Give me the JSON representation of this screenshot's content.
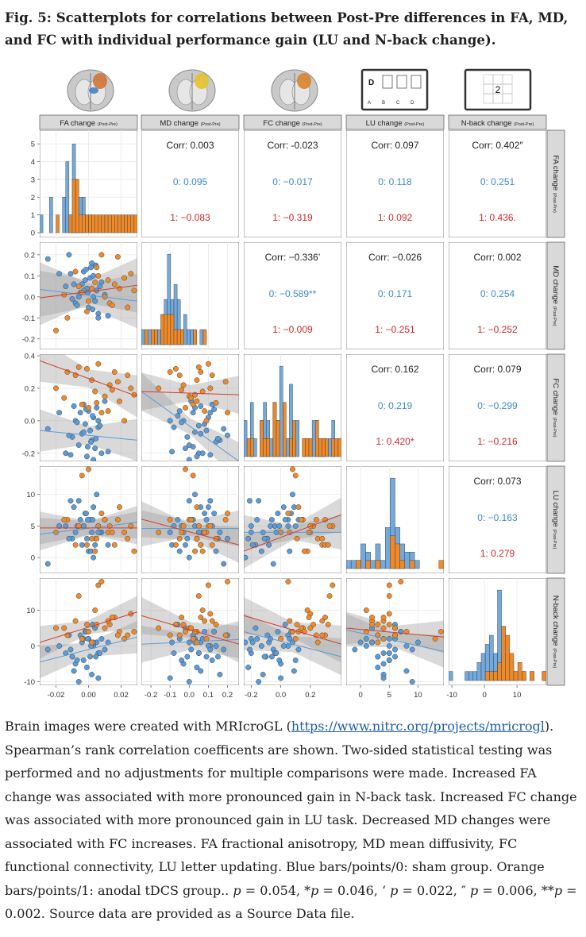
{
  "figure": {
    "title": "Fig. 5: Scatterplots for correlations between Post-Pre differences in FA, MD, and FC with individual performance gain (LU and N-back change)."
  },
  "caption": {
    "text_before_link": "Brain images were created with MRIcroGL (",
    "link_text": "https://www.nitrc.org/projects/mricrogl",
    "text_after_link": "). Spearman’s rank correlation coefficents are shown. Two-sided statistical testing was performed and no adjustments for multiple comparisons were made. Increased FA change was associated with more pronounced gain in N-back task. Increased FC change was associated with more pronounced gain in LU task. Decreased MD changes were associated with FC increases. FA fractional anisotropy, MD mean diffusivity, FC functional connectivity, LU letter updating. Blue bars/points/0: sham group. Orange bars/points/1: anodal tDCS group..",
    "p1_sym": "p",
    "p1_val": " = 0.054, *",
    "p2_sym": "p",
    "p2_val": " = 0.046, ‘ ",
    "p3_sym": "p",
    "p3_val": " = 0.022, ″ ",
    "p4_sym": "p",
    "p4_val": " = 0.006, **",
    "p5_sym": "p",
    "p5_val": " = 0.002. Source data are provided as a Source Data file."
  },
  "icons": {
    "lu_task": {
      "letter": "D",
      "bottom_letters": [
        "A",
        "B",
        "C",
        "D"
      ]
    },
    "nback_task": {
      "digit": "2"
    }
  },
  "colors": {
    "sham": "#5b9bd8",
    "anodal": "#ee8a2a",
    "corr_sham_text": "#3e89cc",
    "corr_anodal_text": "#cc2a2a",
    "strip": "#d9d9d9"
  },
  "chart_data": {
    "type": "scatter",
    "variables": [
      {
        "key": "FA",
        "label": "FA change",
        "sub": "(Post-Pre)",
        "lim": [
          -0.03,
          0.03
        ],
        "ticks": [
          -0.02,
          0.0,
          0.02
        ],
        "tick_labels": [
          "-0.02",
          "0.00",
          "0.02"
        ]
      },
      {
        "key": "MD",
        "label": "MD change",
        "sub": "(Post-Pre)",
        "lim": [
          -0.25,
          0.26
        ],
        "ticks": [
          -0.2,
          -0.1,
          0.0,
          0.1,
          0.2
        ],
        "tick_labels": [
          "-0.2",
          "-0.1",
          "0.0",
          "0.1",
          "0.2"
        ]
      },
      {
        "key": "FC",
        "label": "FC change",
        "sub": "(Post-Pre)",
        "lim": [
          -0.25,
          0.41
        ],
        "ticks": [
          -0.2,
          0.0,
          0.2
        ],
        "tick_labels": [
          "-0.2",
          "0.0",
          "0.2"
        ]
      },
      {
        "key": "LU",
        "label": "LU change",
        "sub": "(Post-Pre)",
        "lim": [
          -2.5,
          14.5
        ],
        "ticks": [
          0,
          5,
          10
        ],
        "tick_labels": [
          "0",
          "5",
          "10"
        ]
      },
      {
        "key": "NB",
        "label": "N-back change",
        "sub": "(Post-Pre)",
        "lim": [
          -11,
          19
        ],
        "ticks": [
          -10,
          0,
          10
        ],
        "tick_labels": [
          "-10",
          "0",
          "10"
        ]
      }
    ],
    "fa_count_axis": {
      "lim": [
        -0.3,
        5.5
      ],
      "ticks": [
        0,
        1,
        2,
        3,
        4,
        5
      ],
      "tick_labels": [
        "0",
        "1",
        "2",
        "3",
        "4",
        "5"
      ]
    },
    "left_axis_labels": {
      "MD": {
        "ticks": [
          -0.2,
          -0.1,
          0.0,
          0.1,
          0.2
        ],
        "tick_labels": [
          "-0.2",
          "-0.1",
          "0.0",
          "0.1",
          "0.2"
        ]
      },
      "FC": {
        "ticks": [
          -0.2,
          0.0,
          0.2,
          0.4
        ],
        "tick_labels": [
          "-0.2",
          "0.0",
          "0.2",
          "0.4"
        ]
      },
      "LU": {
        "ticks": [
          0,
          5,
          10
        ],
        "tick_labels": [
          "0",
          "5",
          "10"
        ]
      },
      "NB": {
        "ticks": [
          -10,
          0,
          10
        ],
        "tick_labels": [
          "-10",
          "0",
          "10"
        ]
      }
    },
    "correlations": [
      {
        "row": "FA",
        "col": "MD",
        "corr": "Corr: 0.003",
        "g0": "0: 0.095",
        "g1": "1: −0.083"
      },
      {
        "row": "FA",
        "col": "FC",
        "corr": "Corr: -0.023",
        "g0": "0: −0.017",
        "g1": "1: −0.319"
      },
      {
        "row": "FA",
        "col": "LU",
        "corr": "Corr: 0.097",
        "g0": "0: 0.118",
        "g1": "1: 0.092"
      },
      {
        "row": "FA",
        "col": "NB",
        "corr": "Corr: 0.402″",
        "g0": "0: 0.251",
        "g1": "1: 0.436."
      },
      {
        "row": "MD",
        "col": "FC",
        "corr": "Corr: −0.336’",
        "g0": "0: −0.589**",
        "g1": "1: −0.009"
      },
      {
        "row": "MD",
        "col": "LU",
        "corr": "Corr: −0.026",
        "g0": "0: 0.171",
        "g1": "1: −0.251"
      },
      {
        "row": "MD",
        "col": "NB",
        "corr": "Corr: 0.002",
        "g0": "0: 0.254",
        "g1": "1: −0.252"
      },
      {
        "row": "FC",
        "col": "LU",
        "corr": "Corr: 0.162",
        "g0": "0: 0.219",
        "g1": "1: 0.420*"
      },
      {
        "row": "FC",
        "col": "NB",
        "corr": "Corr: 0.079",
        "g0": "0: −0.299",
        "g1": "1: −0.216"
      },
      {
        "row": "LU",
        "col": "NB",
        "corr": "Corr: 0.073",
        "g0": "0: −0.163",
        "g1": "1: 0.279"
      }
    ],
    "histograms": {
      "FA": {
        "bin_start": -0.03,
        "bin_width": 0.002,
        "sham": [
          1,
          0,
          0,
          2,
          0,
          0,
          0,
          2,
          4,
          1,
          5,
          3,
          2,
          2,
          0,
          1,
          0,
          0,
          0,
          0,
          0,
          0,
          0,
          0,
          0,
          0,
          0,
          0,
          0,
          0
        ],
        "anodal": [
          0,
          0,
          0,
          0,
          0,
          1,
          0,
          0,
          0,
          1,
          3,
          3,
          1,
          1,
          1,
          1,
          1,
          1,
          1,
          1,
          1,
          1,
          1,
          1,
          1,
          1,
          1,
          1,
          1,
          1
        ]
      },
      "MD": {
        "bin_start": -0.25,
        "bin_width": 0.017,
        "sham": [
          1,
          0,
          1,
          0,
          0,
          1,
          2,
          3,
          6,
          3,
          4,
          3,
          1,
          2,
          1,
          1,
          0,
          0,
          1,
          0
        ],
        "anodal": [
          0,
          1,
          0,
          1,
          1,
          0,
          2,
          2,
          2,
          2,
          1,
          1,
          1,
          0,
          0,
          0,
          1,
          0,
          0,
          1
        ]
      },
      "FC": {
        "bin_start": -0.25,
        "bin_width": 0.022,
        "sham": [
          2,
          0,
          3,
          1,
          0,
          2,
          3,
          2,
          1,
          3,
          2,
          5,
          1,
          1,
          4,
          1,
          2,
          0,
          1,
          0,
          0,
          2,
          2,
          1,
          1,
          0,
          1,
          2,
          0,
          0
        ],
        "anodal": [
          0,
          1,
          1,
          0,
          0,
          2,
          1,
          1,
          0,
          3,
          2,
          0,
          3,
          0,
          1,
          2,
          0,
          0,
          1,
          1,
          1,
          0,
          2,
          1,
          1,
          1,
          0,
          1,
          1,
          1
        ]
      },
      "LU": {
        "bin_start": -2.5,
        "bin_width": 0.85,
        "sham": [
          1,
          1,
          1,
          3,
          2,
          1,
          3,
          1,
          5,
          11,
          5,
          3,
          2,
          2,
          1,
          0,
          0,
          0,
          0,
          0
        ],
        "anodal": [
          0,
          0,
          1,
          0,
          1,
          0,
          1,
          0,
          0,
          4,
          3,
          1,
          0,
          1,
          0,
          0,
          0,
          0,
          0,
          1
        ]
      },
      "NB": {
        "bin_start": -11,
        "bin_width": 1.25,
        "sham": [
          1,
          0,
          0,
          0,
          1,
          1,
          1,
          2,
          3,
          4,
          5,
          3,
          10,
          3,
          1,
          2,
          1,
          0,
          1,
          0,
          1,
          0,
          0,
          1
        ],
        "anodal": [
          0,
          0,
          0,
          0,
          0,
          0,
          0,
          0,
          0,
          1,
          1,
          1,
          2,
          6,
          5,
          3,
          1,
          2,
          1,
          0,
          1,
          0,
          0,
          1
        ]
      }
    },
    "points": {
      "FA": {
        "sham": [
          -0.025,
          -0.018,
          -0.014,
          -0.01,
          -0.008,
          -0.006,
          -0.005,
          -0.004,
          -0.003,
          -0.002,
          -0.001,
          0.0,
          0.001,
          0.002,
          0.003,
          0.004,
          0.005,
          0.006,
          0.008,
          0.01,
          -0.012,
          -0.007,
          -0.0015,
          0.0015,
          0.007,
          0.012,
          -0.009,
          -0.003,
          0.0025,
          0.0045,
          0.003,
          -0.011,
          0.006,
          -0.0005
        ],
        "anodal": [
          -0.02,
          -0.013,
          -0.008,
          -0.004,
          0.0,
          0.002,
          0.004,
          0.006,
          0.008,
          0.01,
          0.013,
          0.016,
          0.019,
          0.022,
          0.024,
          0.026,
          -0.015,
          -0.001,
          0.012,
          0.018,
          0.028,
          -0.006,
          0.005,
          0.0145
        ]
      },
      "MD": {
        "sham": [
          0.18,
          0.11,
          0.05,
          -0.01,
          -0.03,
          0.0,
          0.02,
          0.06,
          0.12,
          0.08,
          0.04,
          -0.05,
          0.09,
          0.16,
          0.1,
          -0.02,
          0.03,
          -0.08,
          0.07,
          0.01,
          0.2,
          -0.04,
          0.13,
          0.14,
          0.05,
          -0.09,
          0.06,
          0.03,
          -0.06,
          0.15,
          0.0,
          0.11,
          -0.1,
          0.02
        ],
        "anodal": [
          -0.16,
          -0.1,
          0.12,
          0.02,
          -0.02,
          0.04,
          0.07,
          0.1,
          0.2,
          0.0,
          -0.03,
          0.06,
          0.04,
          0.09,
          -0.05,
          0.11,
          0.01,
          -0.07,
          0.08,
          0.19,
          0.03,
          0.05,
          0.14,
          -0.04
        ]
      },
      "FC": {
        "sham": [
          -0.05,
          0.05,
          -0.2,
          -0.1,
          0.0,
          -0.15,
          0.05,
          -0.08,
          0.1,
          -0.02,
          -0.22,
          0.06,
          -0.06,
          -0.12,
          0.02,
          -0.17,
          0.08,
          -0.04,
          -0.2,
          0.12,
          -0.09,
          -0.01,
          0.07,
          -0.13,
          -0.03,
          -0.19,
          0.09,
          -0.07,
          0.03,
          -0.11,
          -0.24,
          -0.21,
          0.0,
          -0.16
        ],
        "anodal": [
          0.2,
          0.3,
          0.28,
          0.1,
          0.08,
          0.25,
          0.18,
          0.35,
          0.05,
          0.15,
          0.22,
          0.3,
          0.12,
          0.0,
          0.28,
          0.2,
          0.14,
          0.32,
          0.06,
          0.24,
          0.16,
          0.33,
          0.11,
          0.19
        ]
      },
      "LU": {
        "sham": [
          -1,
          5,
          5,
          3,
          4,
          9,
          6,
          2,
          5,
          7,
          3,
          1,
          6,
          4,
          8,
          2,
          10,
          5,
          4,
          6,
          3,
          5,
          7,
          1,
          4,
          2,
          8,
          5,
          6,
          3,
          0,
          9,
          4,
          6
        ],
        "anodal": [
          4,
          6,
          2,
          13,
          14,
          3,
          1,
          5,
          7,
          6,
          5,
          2,
          8,
          4,
          3,
          5,
          6,
          2,
          4,
          6,
          1,
          5,
          3,
          4
        ]
      },
      "NB": {
        "sham": [
          -1,
          0,
          -2,
          -3,
          -5,
          -10,
          3,
          1,
          -4,
          4,
          -6,
          2,
          -3,
          -8,
          0,
          5,
          1,
          -2,
          2,
          -1,
          3,
          -4,
          4,
          0,
          -2,
          1,
          -7,
          2,
          6,
          -3,
          1,
          -1,
          -9,
          2
        ],
        "anodal": [
          5,
          3,
          7,
          2,
          4,
          1,
          10,
          17,
          18,
          5,
          6,
          8,
          4,
          2,
          3,
          9,
          5,
          6,
          7,
          3,
          4,
          14,
          6,
          8
        ]
      }
    },
    "fits": {
      "FA-MD": {
        "sham": [
          0.035,
          -0.02
        ],
        "anodal": [
          -0.005,
          0.055
        ],
        "band": 0.1
      },
      "FA-FC": {
        "sham": [
          -0.06,
          -0.12
        ],
        "anodal": [
          0.37,
          0.15
        ],
        "band": 0.1
      },
      "FA-LU": {
        "sham": [
          3.7,
          5.6
        ],
        "anodal": [
          4.7,
          4.7
        ],
        "band": 2.0
      },
      "FA-NB": {
        "sham": [
          -4.5,
          2.5
        ],
        "anodal": [
          1.0,
          9.5
        ],
        "band": 3.5
      },
      "MD-FC": {
        "sham": [
          0.18,
          -0.25
        ],
        "anodal": [
          0.18,
          0.16
        ],
        "band": 0.09
      },
      "MD-LU": {
        "sham": [
          4.6,
          4.6
        ],
        "anodal": [
          6.1,
          2.0
        ],
        "band": 2.2
      },
      "MD-NB": {
        "sham": [
          0.5,
          1.8
        ],
        "anodal": [
          8.5,
          0.5
        ],
        "band": 4.0
      },
      "FC-LU": {
        "sham": [
          4.0,
          4.0
        ],
        "anodal": [
          1.0,
          6.8
        ],
        "band": 2.1
      },
      "FC-NB": {
        "sham": [
          4.0,
          -3.0
        ],
        "anodal": [
          8.5,
          0.5
        ],
        "band": 4.0
      },
      "LU-NB": {
        "sham": [
          4.5,
          -1.5
        ],
        "anodal": [
          5.0,
          2.5
        ],
        "band": 3.5
      }
    }
  }
}
